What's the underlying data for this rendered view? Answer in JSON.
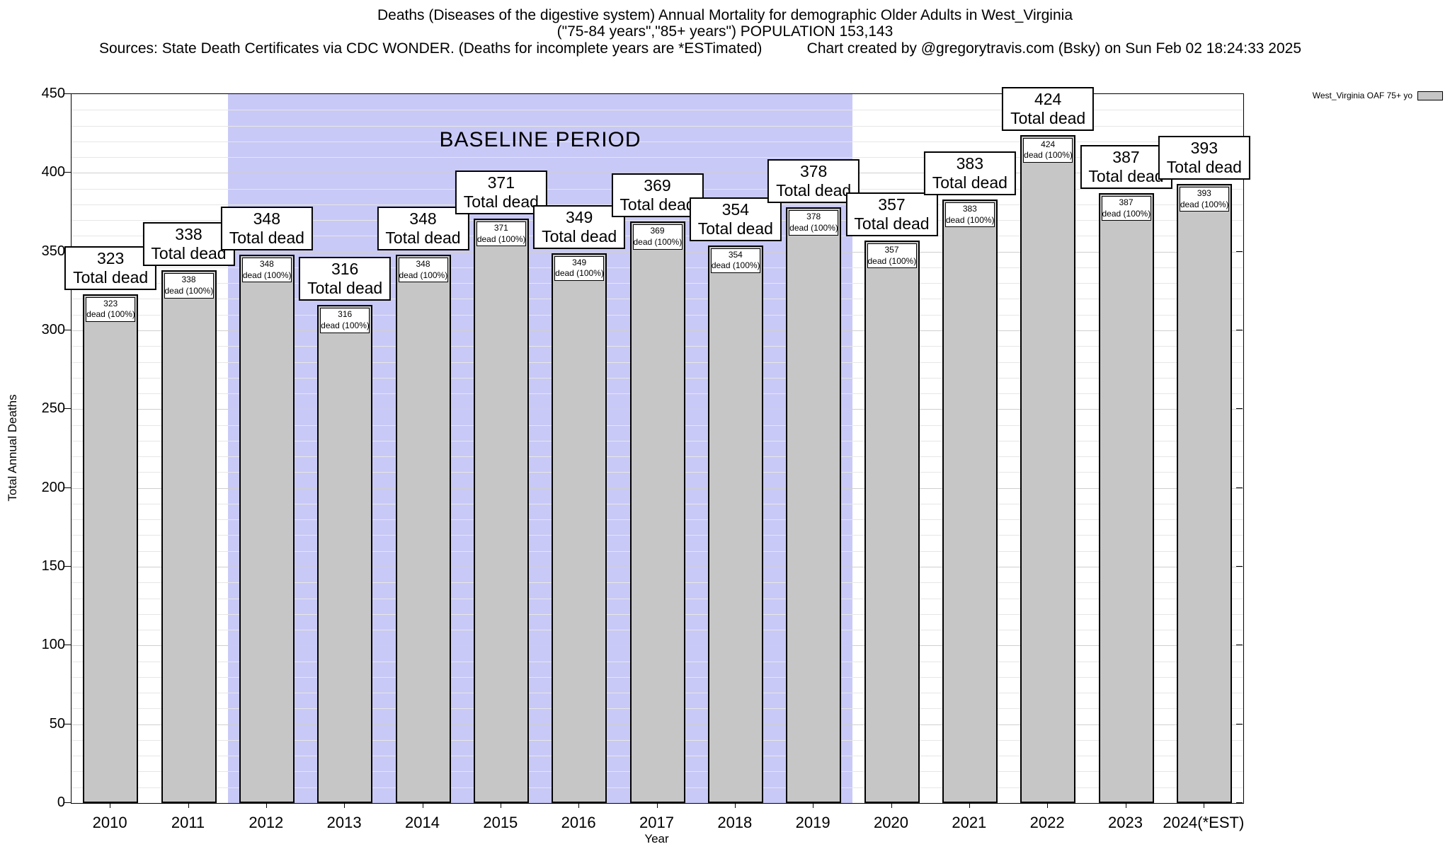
{
  "title": {
    "line1": "Deaths (Diseases of the digestive system) Annual Mortality for demographic Older Adults in West_Virginia",
    "line2": "(\"75-84 years\",\"85+ years\") POPULATION 153,143",
    "sources": "Sources: State Death Certificates via CDC WONDER. (Deaths for incomplete years are *ESTimated)",
    "credit": "Chart created by @gregorytravis.com (Bsky) on Sun Feb 02 18:24:33 2025"
  },
  "legend": {
    "label": "West_Virginia OAF 75+ yo"
  },
  "axes": {
    "ylabel": "Total Annual Deaths",
    "xlabel": "Year"
  },
  "labels": {
    "bar_total": "Total dead",
    "bar_pct": "dead (100%)",
    "baseline": "BASELINE PERIOD"
  },
  "colors": {
    "bar_fill": "#c6c6c6",
    "bar_border": "#000000",
    "baseline_bg": "#c9c9f7",
    "grid_minor": "#e6e6e6",
    "grid_major": "#cfcfcf"
  },
  "chart_data": {
    "type": "bar",
    "title": "Deaths (Diseases of the digestive system) Annual Mortality for demographic Older Adults in West_Virginia (\"75-84 years\",\"85+ years\") POPULATION 153,143",
    "categories": [
      "2010",
      "2011",
      "2012",
      "2013",
      "2014",
      "2015",
      "2016",
      "2017",
      "2018",
      "2019",
      "2020",
      "2021",
      "2022",
      "2023",
      "2024(*EST)"
    ],
    "series": [
      {
        "name": "West_Virginia OAF 75+ yo",
        "values": [
          323,
          338,
          348,
          316,
          348,
          371,
          349,
          369,
          354,
          378,
          357,
          383,
          424,
          387,
          393
        ]
      }
    ],
    "xlabel": "Year",
    "ylabel": "Total Annual Deaths",
    "ylim": [
      0,
      450
    ],
    "ytick_step": 50,
    "minor_grid_step": 10,
    "grid": true,
    "legend_position": "top-right",
    "baseline_period": {
      "label": "BASELINE PERIOD",
      "from": "2012",
      "to": "2019"
    },
    "bar_annotations": {
      "above_line1": "{value}",
      "above_line2": "Total dead",
      "inside_line1": "{value}",
      "inside_line2": "dead (100%)"
    }
  }
}
